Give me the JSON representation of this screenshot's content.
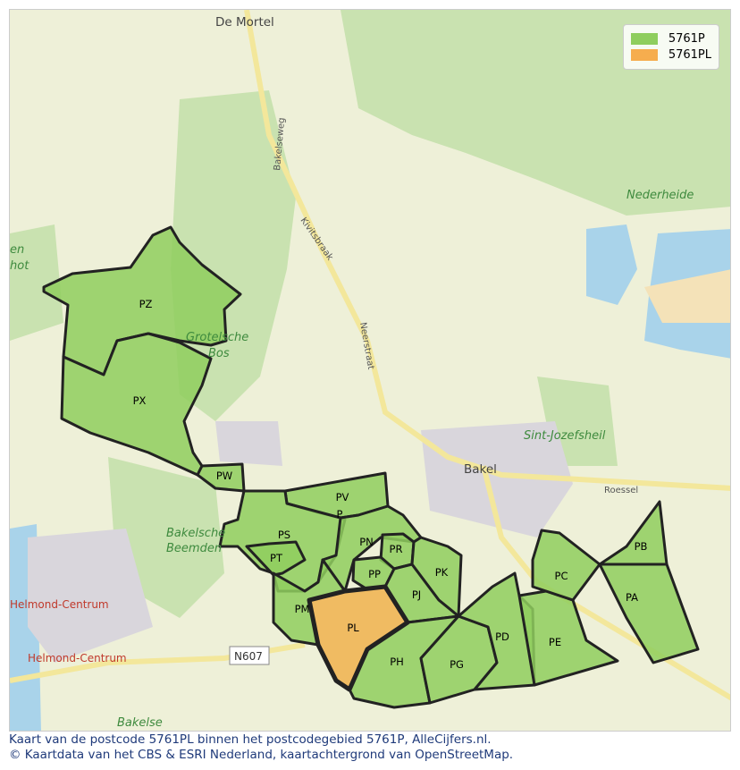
{
  "legend": [
    {
      "label": "5761P",
      "color": "#8fce5e"
    },
    {
      "label": "5761PL",
      "color": "#f6ad4e"
    }
  ],
  "areas": [
    {
      "code": "PZ",
      "highlight": false
    },
    {
      "code": "PX",
      "highlight": false
    },
    {
      "code": "PW",
      "highlight": false
    },
    {
      "code": "PV",
      "highlight": false
    },
    {
      "code": "P",
      "highlight": false
    },
    {
      "code": "PS",
      "highlight": false
    },
    {
      "code": "PT",
      "highlight": false
    },
    {
      "code": "PN",
      "highlight": false
    },
    {
      "code": "PR",
      "highlight": false
    },
    {
      "code": "PP",
      "highlight": false
    },
    {
      "code": "PK",
      "highlight": false
    },
    {
      "code": "PJ",
      "highlight": false
    },
    {
      "code": "PM",
      "highlight": false
    },
    {
      "code": "PL",
      "highlight": true
    },
    {
      "code": "PH",
      "highlight": false
    },
    {
      "code": "PG",
      "highlight": false
    },
    {
      "code": "PD",
      "highlight": false
    },
    {
      "code": "PE",
      "highlight": false
    },
    {
      "code": "PC",
      "highlight": false
    },
    {
      "code": "PB",
      "highlight": false
    },
    {
      "code": "PA",
      "highlight": false
    }
  ],
  "places": {
    "de_mortel": "De Mortel",
    "bakel": "Bakel",
    "nederheide": "Nederheide",
    "sint_jozefsheil": "Sint-Jozefsheil",
    "grotelsche_bos_1": "Grotelsche",
    "grotelsche_bos_2": "Bos",
    "bakelsche_1": "Bakelsche",
    "bakelsche_2": "Beemden",
    "helmond_centrum_1": "Helmond-Centrum",
    "helmond_centrum_2": "Helmond-Centrum",
    "bakelse": "Bakelse",
    "n607": "N607",
    "bakelseweg": "Bakelseweg",
    "kivitsbraak": "Kivitsbraak",
    "neerstraat": "Neerstraat",
    "roessel": "Roessel",
    "hot": "hot",
    "en": "en"
  },
  "caption": {
    "line1": "Kaart van de postcode 5761PL binnen het postcodegebied 5761P, AlleCijfers.nl.",
    "line2": "© Kaartdata van het CBS & ESRI Nederland, kaartachtergrond van OpenStreetMap."
  }
}
